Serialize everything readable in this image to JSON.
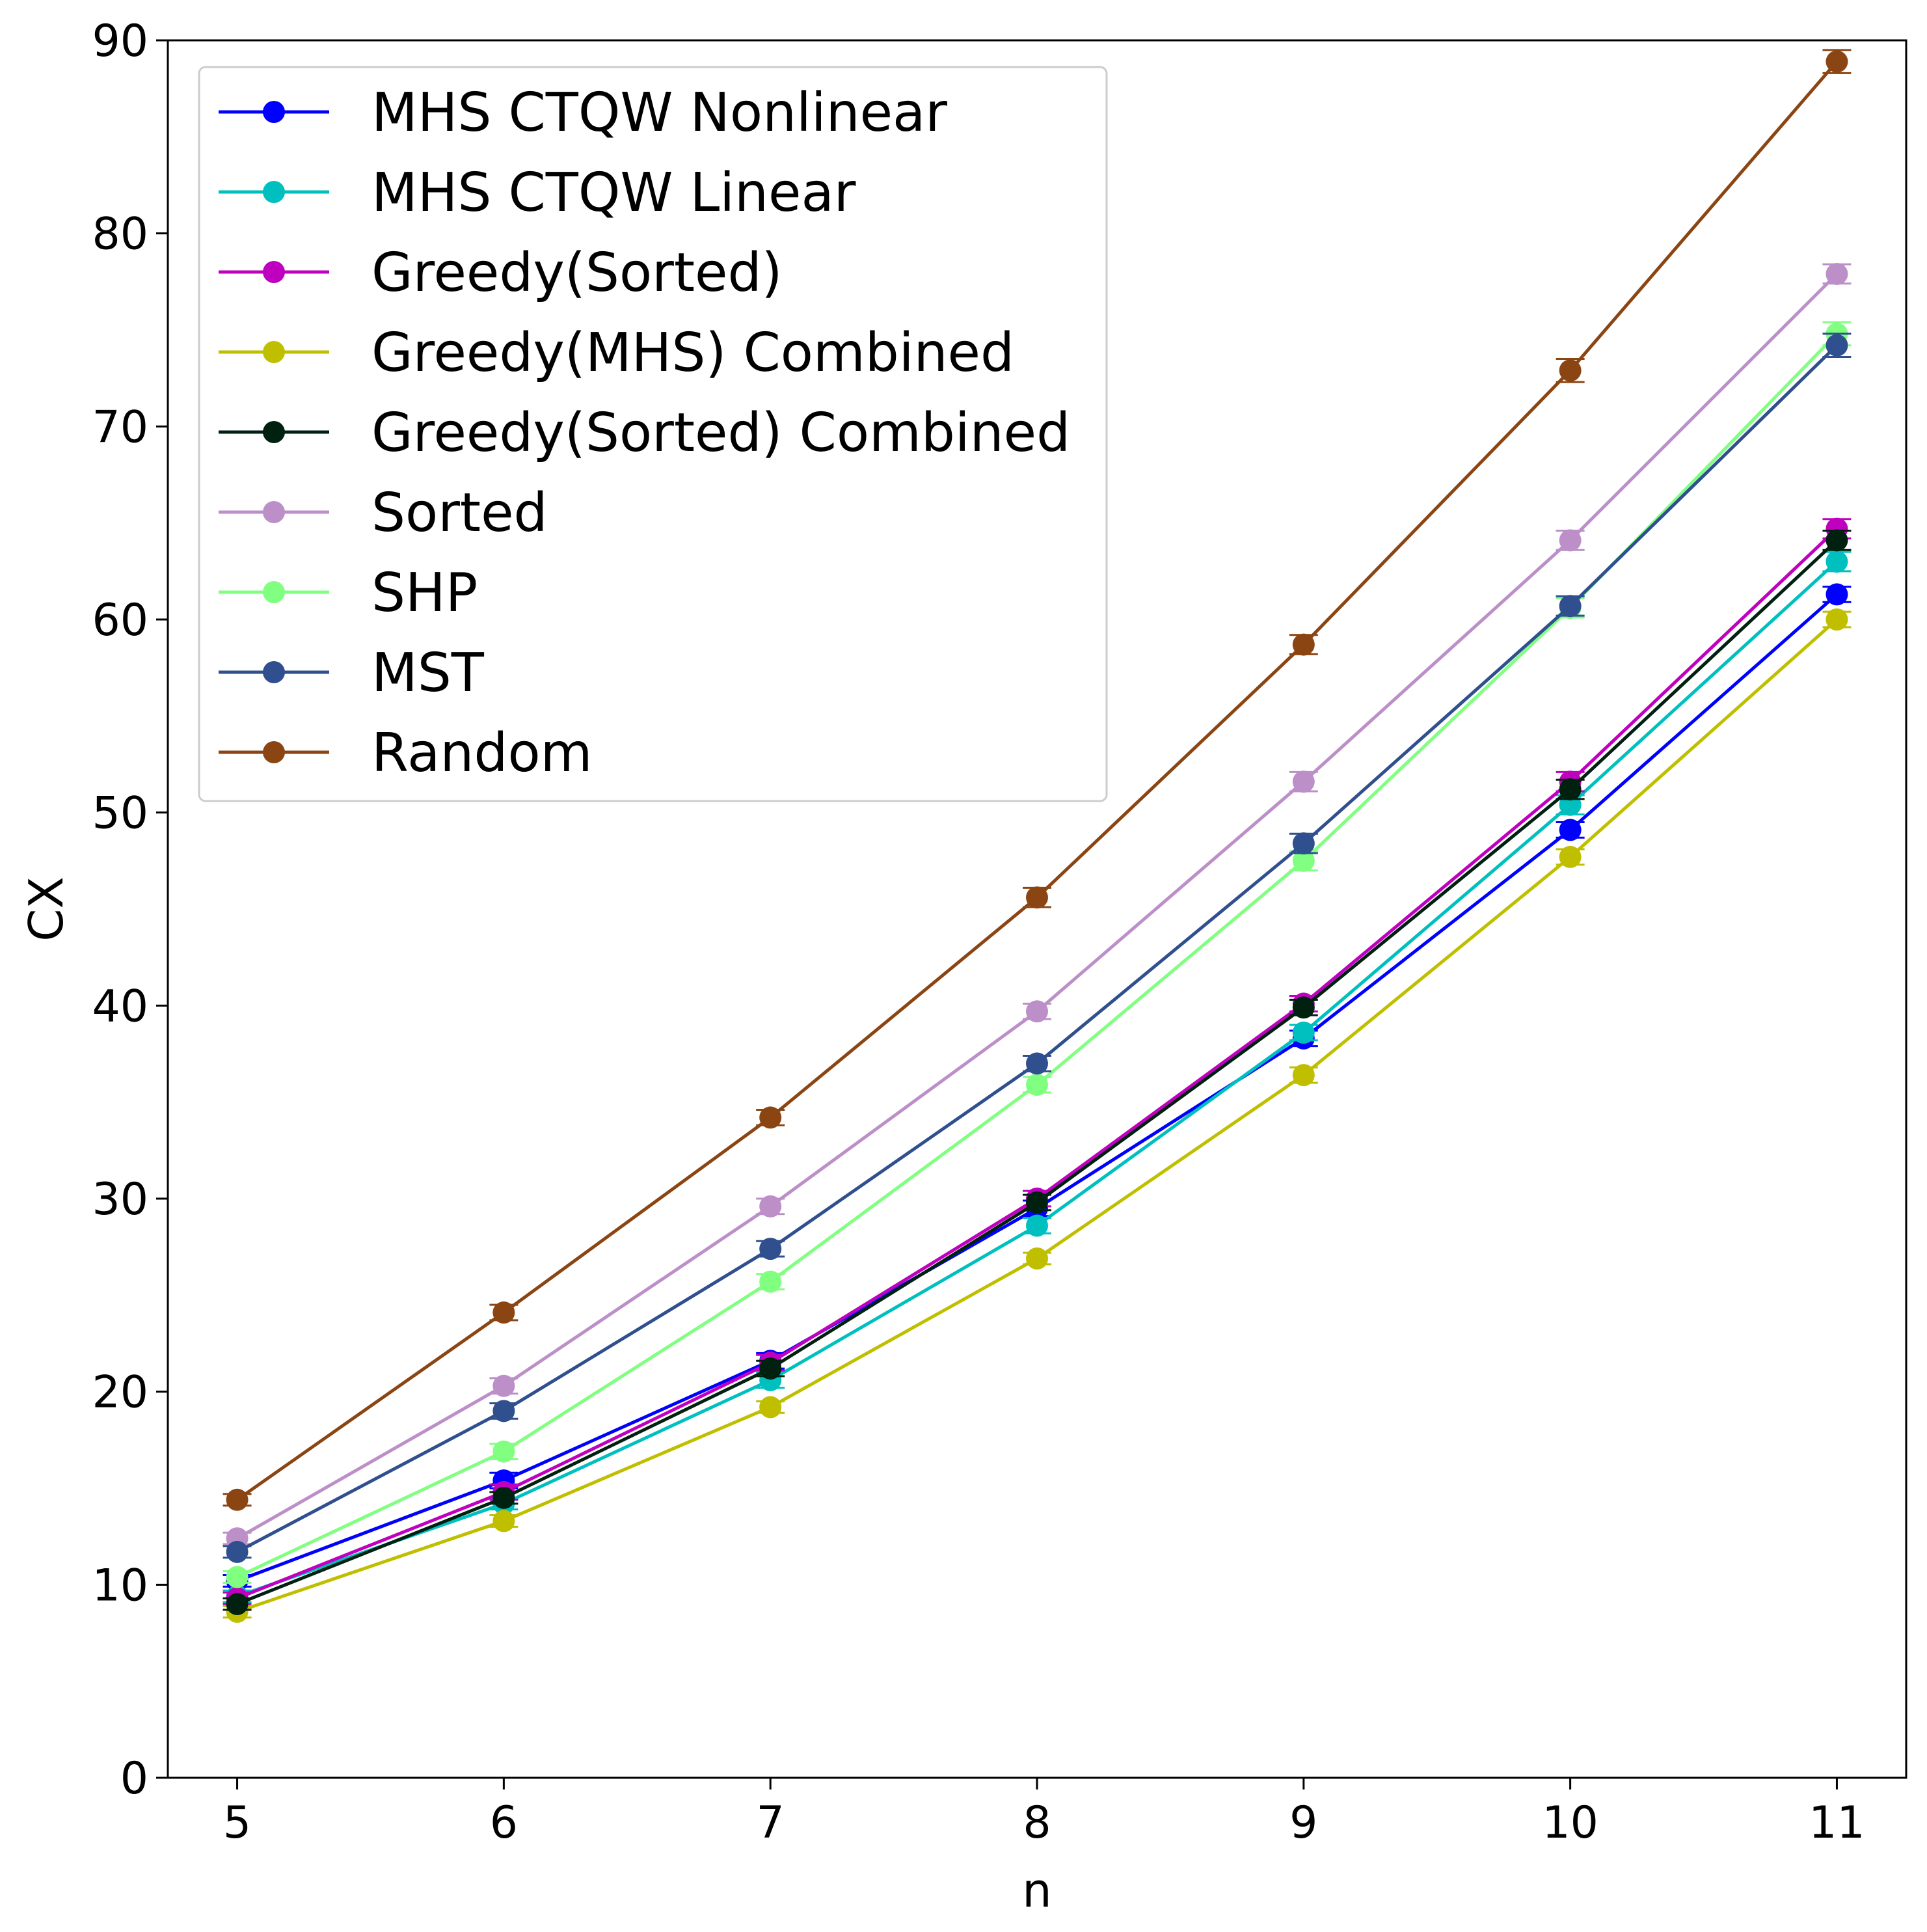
{
  "chart_data": {
    "type": "line",
    "xlabel": "n",
    "ylabel": "CX",
    "x": [
      5,
      6,
      7,
      8,
      9,
      10,
      11
    ],
    "xlim": [
      4.74,
      11.26
    ],
    "ylim": [
      0,
      90
    ],
    "xticks": [
      "5",
      "6",
      "7",
      "8",
      "9",
      "10",
      "11"
    ],
    "yticks": [
      "0",
      "10",
      "20",
      "30",
      "40",
      "50",
      "60",
      "70",
      "80",
      "90"
    ],
    "grid": false,
    "legend_position": "top-left",
    "series": [
      {
        "name": "MHS CTQW Nonlinear",
        "color": "#0000ff",
        "values": [
          10.2,
          15.4,
          21.6,
          29.5,
          38.3,
          49.1,
          61.3
        ],
        "errors": [
          0.3,
          0.4,
          0.4,
          0.4,
          0.4,
          0.4,
          0.4
        ]
      },
      {
        "name": "MHS CTQW Linear",
        "color": "#00bfbf",
        "values": [
          9.4,
          14.2,
          20.6,
          28.6,
          38.6,
          50.4,
          63.0
        ],
        "errors": [
          0.3,
          0.3,
          0.4,
          0.4,
          0.4,
          0.5,
          0.5
        ]
      },
      {
        "name": "Greedy(Sorted)",
        "color": "#bf00bf",
        "values": [
          9.3,
          14.8,
          21.5,
          30.0,
          40.1,
          51.6,
          64.7
        ],
        "errors": [
          0.3,
          0.4,
          0.4,
          0.4,
          0.4,
          0.5,
          0.5
        ]
      },
      {
        "name": "Greedy(MHS) Combined",
        "color": "#bfbf00",
        "values": [
          8.6,
          13.3,
          19.2,
          26.9,
          36.4,
          47.7,
          60.0
        ],
        "errors": [
          0.3,
          0.3,
          0.3,
          0.3,
          0.4,
          0.4,
          0.4
        ]
      },
      {
        "name": "Greedy(Sorted) Combined",
        "color": "#002010",
        "values": [
          9.0,
          14.5,
          21.2,
          29.8,
          39.9,
          51.2,
          64.1
        ],
        "errors": [
          0.3,
          0.3,
          0.4,
          0.4,
          0.4,
          0.5,
          0.5
        ]
      },
      {
        "name": "Sorted",
        "color": "#bc8fc8",
        "values": [
          12.4,
          20.3,
          29.6,
          39.7,
          51.6,
          64.1,
          77.9
        ],
        "errors": [
          0.3,
          0.4,
          0.4,
          0.4,
          0.5,
          0.5,
          0.5
        ]
      },
      {
        "name": "SHP",
        "color": "#80ff80",
        "values": [
          10.4,
          16.9,
          25.7,
          35.9,
          47.5,
          60.6,
          74.8
        ],
        "errors": [
          0.3,
          0.4,
          0.4,
          0.4,
          0.5,
          0.5,
          0.6
        ]
      },
      {
        "name": "MST",
        "color": "#2f4f8f",
        "values": [
          11.7,
          19.0,
          27.4,
          37.0,
          48.4,
          60.7,
          74.2
        ],
        "errors": [
          0.3,
          0.4,
          0.4,
          0.4,
          0.5,
          0.5,
          0.6
        ]
      },
      {
        "name": "Random",
        "color": "#8b4513",
        "values": [
          14.4,
          24.1,
          34.2,
          45.6,
          58.7,
          72.9,
          88.9
        ],
        "errors": [
          0.3,
          0.4,
          0.4,
          0.5,
          0.5,
          0.6,
          0.6
        ]
      }
    ]
  }
}
